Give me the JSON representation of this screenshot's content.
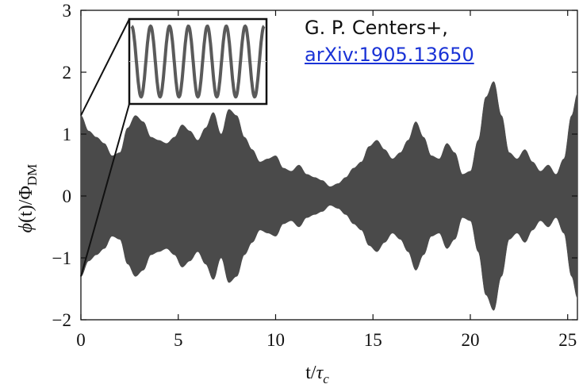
{
  "chart_data": {
    "type": "line",
    "title": "",
    "xlabel": "t/τ_c",
    "ylabel": "φ(t)/Φ_DM",
    "xlim": [
      0,
      25.5
    ],
    "ylim": [
      -2,
      3
    ],
    "xticks": [
      "0",
      "5",
      "10",
      "15",
      "20",
      "25"
    ],
    "yticks": [
      "−2",
      "−1",
      "0",
      "1",
      "2",
      "3"
    ],
    "series": [
      {
        "description": "rapidly oscillating field; plotted as filled envelope between -A(t) and +A(t)",
        "color": "#4a4a4a",
        "envelope_t": [
          0,
          0.4,
          0.8,
          1.2,
          1.6,
          2.0,
          2.4,
          2.8,
          3.2,
          3.6,
          4.0,
          4.4,
          4.8,
          5.2,
          5.6,
          6.0,
          6.4,
          6.8,
          7.2,
          7.6,
          8.0,
          8.4,
          8.8,
          9.2,
          9.6,
          10.0,
          10.4,
          10.8,
          11.2,
          11.6,
          12.0,
          12.4,
          12.8,
          13.2,
          13.6,
          14.0,
          14.4,
          14.8,
          15.2,
          15.6,
          16.0,
          16.4,
          16.8,
          17.2,
          17.6,
          18.0,
          18.4,
          18.8,
          19.2,
          19.6,
          20.0,
          20.4,
          20.8,
          21.2,
          21.6,
          22.0,
          22.4,
          22.8,
          23.2,
          23.6,
          24.0,
          24.4,
          24.8,
          25.2,
          25.5
        ],
        "envelope_amplitude": [
          1.3,
          1.05,
          0.95,
          0.85,
          0.65,
          0.7,
          1.1,
          1.3,
          1.2,
          0.95,
          0.9,
          0.85,
          0.95,
          1.15,
          1.05,
          0.9,
          1.1,
          1.35,
          1.0,
          1.4,
          1.3,
          0.95,
          0.75,
          0.55,
          0.6,
          0.65,
          0.45,
          0.4,
          0.5,
          0.35,
          0.3,
          0.25,
          0.15,
          0.2,
          0.3,
          0.45,
          0.55,
          0.8,
          0.9,
          0.75,
          0.6,
          0.7,
          0.9,
          1.2,
          0.95,
          0.65,
          0.6,
          0.85,
          0.7,
          0.35,
          0.4,
          0.9,
          1.6,
          1.85,
          1.3,
          0.7,
          0.6,
          0.75,
          0.55,
          0.4,
          0.5,
          0.35,
          0.6,
          1.3,
          1.65
        ],
        "inset_detail": "zoom of the first interval shows a pure sinusoid, 7 cycles"
      }
    ],
    "grid": false,
    "legend": "none"
  },
  "credit": {
    "authors": "G. P. Centers+,",
    "link_text": "arXiv:1905.13650"
  }
}
